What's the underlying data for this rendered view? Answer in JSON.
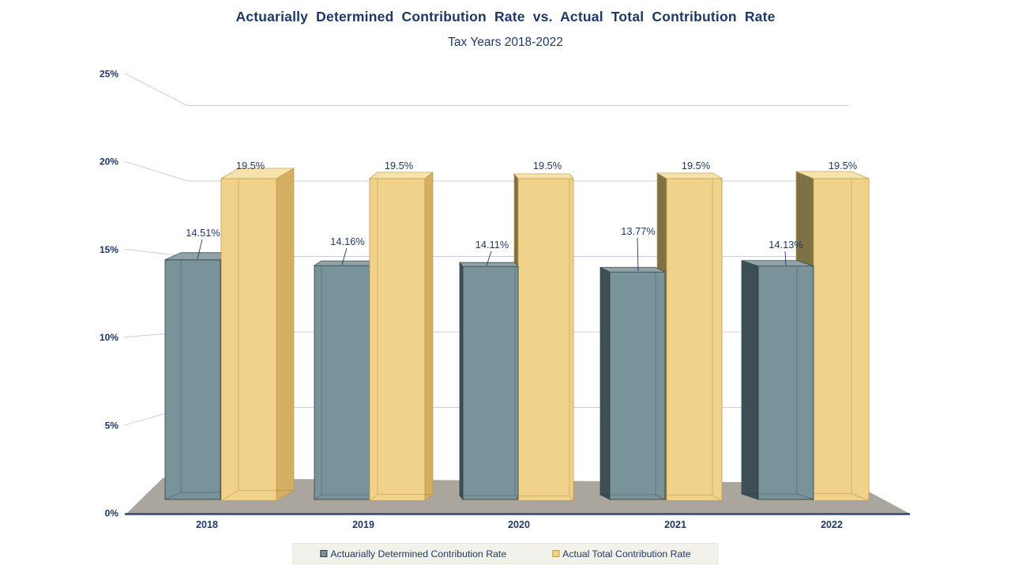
{
  "title": "Actuarially Determined Contribution Rate vs. Actual Total Contribution Rate",
  "subtitle": "Tax Years 2018-2022",
  "chart_data": {
    "type": "bar",
    "projection": "3d-column",
    "title": "Actuarially Determined Contribution Rate vs. Actual Total Contribution Rate",
    "subtitle": "Tax Years 2018-2022",
    "categories": [
      "2018",
      "2019",
      "2020",
      "2021",
      "2022"
    ],
    "series": [
      {
        "name": "Actuarially Determined Contribution Rate",
        "values": [
          14.51,
          14.16,
          14.11,
          13.77,
          14.13
        ],
        "labels": [
          "14.51%",
          "14.16%",
          "14.11%",
          "13.77%",
          "14.13%"
        ],
        "color": "#79939a"
      },
      {
        "name": "Actual Total Contribution Rate",
        "values": [
          19.5,
          19.5,
          19.5,
          19.5,
          19.5
        ],
        "labels": [
          "19.5%",
          "19.5%",
          "19.5%",
          "19.5%",
          "19.5%"
        ],
        "color": "#f0d28b"
      }
    ],
    "xlabel": "",
    "ylabel": "",
    "y_ticks": [
      "0%",
      "5%",
      "10%",
      "15%",
      "20%",
      "25%"
    ],
    "ylim": [
      0,
      25
    ],
    "grid": true,
    "legend_position": "bottom"
  },
  "colors": {
    "text": "#1f3864",
    "teal_front": "#79939a",
    "teal_top": "#8fa3a7",
    "teal_side": "#3d4f55",
    "teal_edge": "#2e3f45",
    "gold_front": "#f0d28b",
    "gold_top": "#f6e3ab",
    "gold_side": "#d4ae63",
    "gold_side_dark": "#7e7245",
    "gold_edge": "#c19a4c",
    "floor": "#aaa59d",
    "axis_line": "#33437a",
    "gridline": "#c9cee3",
    "legend_bg": "#f3f2ea"
  }
}
